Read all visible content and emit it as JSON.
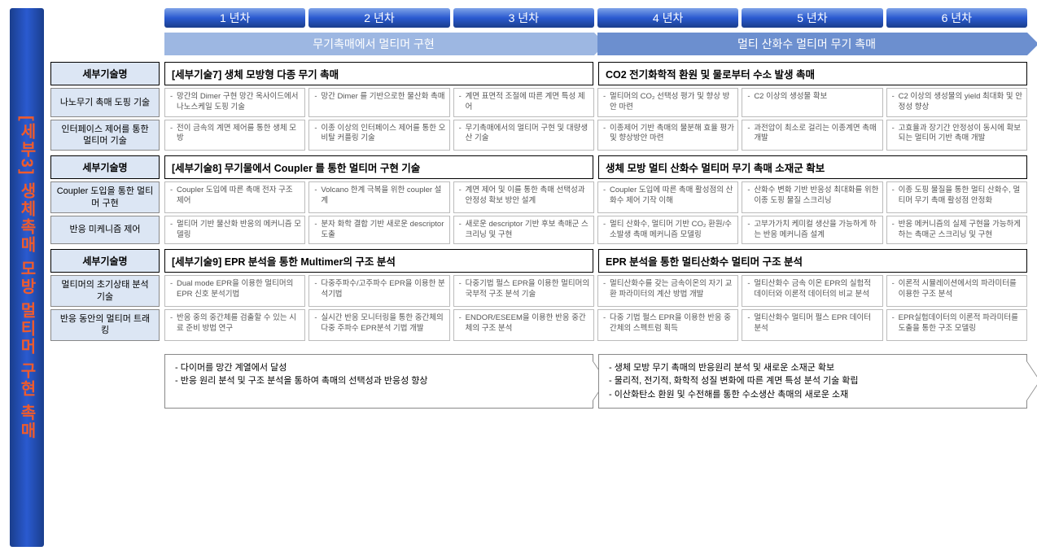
{
  "colors": {
    "banner_gradient": [
      "#1a3e8c",
      "#2a5ad0",
      "#1a3e8c"
    ],
    "banner_text": "#ef5b2c",
    "year_gradient": [
      "#7fa3e8",
      "#2a5ad0",
      "#1a3e8c"
    ],
    "phase1_bg": "#9db7e2",
    "phase2_bg": "#6c8fcf",
    "label_bg": "#dce6f4",
    "cell_border": "#bbbbbb",
    "row_border": "#888888",
    "head_border": "#000000",
    "cell_text": "#555555"
  },
  "vbanner": "[세부3] 생체촉매 모방 멀티머 구현 촉매",
  "years": [
    "1 년차",
    "2 년차",
    "3 년차",
    "4 년차",
    "5 년차",
    "6 년차"
  ],
  "phases": {
    "left": "무기촉매에서 멀티머 구현",
    "right": "멀티 산화수 멀티머 무기 촉매"
  },
  "row_head_label": "세부기술명",
  "sections": [
    {
      "title_left": "[세부기술7] 생체 모방형 다종 무기 촉매",
      "title_right": "CO2 전기화학적 환원 및 물로부터 수소 발생 촉매",
      "rows": [
        {
          "label": "나노무기 촉매 도핑 기술",
          "cells": [
            "망간의 Dimer 구현\n망간 옥사이드에서 나노스케일 도핑 기술",
            "망간 Dimer 를 기반으로한 물산화 촉매",
            "계면 표면적 조절에 따른 계면 특성 제어",
            "멀티머의 CO₂ 선택성 평가 및 향상 방안 마련",
            "C2 이상의 생성물 확보",
            "C2 이상의 생성물의 yield 최대화 및 안정성 향상"
          ]
        },
        {
          "label": "인터페이스 제어를 통한 멀티머 기술",
          "cells": [
            "전이 금속의 계면 제어를 통한 생체 모방",
            "이종 이상의 인터페이스 제어를 통한 오비탈 커플링 기술",
            "무기촉매에서의 멀티머 구현 및 대량생산 기술",
            "이종제어 기반 촉매의 물분해 효율 평가 및 향상방안 마련",
            "과전압이 최소로 걸리는 이종계면 촉매 개발",
            "고효율과 장기간 안정성이 동시에 확보되는 멀티머 기반 촉매 개발"
          ]
        }
      ]
    },
    {
      "title_left": "[세부기술8] 무기물에서 Coupler 를 통한 멀티머 구현 기술",
      "title_right": "생체 모방 멀티 산화수 멀티머 무기 촉매 소재군 확보",
      "rows": [
        {
          "label": "Coupler 도입을 통한 멀티머 구현",
          "cells": [
            "Coupler 도입에 따른 촉매 전자 구조 제어",
            "Volcano 한계 극복을 위한 coupler 설계",
            "계면 제어 및 이를 통한 촉매 선택성과 안정성 확보 방안 설계",
            "Coupler 도입에 따른 촉매 활성점의 산화수 제어 기작 이해",
            "산화수 변화 기반 반응성 최대화를 위한 이종 도핑 물질 스크리닝",
            "이종 도핑 물질을 통한 멀티 산화수, 멀티머 무기 촉매 활성점 안정화"
          ]
        },
        {
          "label": "반응 미케니즘 제어",
          "cells": [
            "멀티머 기반 물산화 반응의 메커니즘 모델링",
            "분자 화학 결합 기반 새로운 descriptor 도출",
            "새로운 descriptor 기반 후보 촉매군 스크리닝 및 구현",
            "멀티 산화수, 멀티머 기반 CO₂ 환원/수소발생 촉매 메커니즘 모델링",
            "고부가가치 케미컬 생산을 가능하게 하는 반응 메커니즘 설계",
            "반응 메커니즘의 실제 구현을 가능하게 하는 촉매군 스크리닝 및 구현"
          ]
        }
      ]
    },
    {
      "title_left": "[세부기술9] EPR 분석을 통한  Multimer의 구조 분석",
      "title_right": "EPR 분석을 통한  멀티산화수 멀티머  구조 분석",
      "rows": [
        {
          "label": "멀티머의 초기상태 분석 기술",
          "cells": [
            "Dual mode EPR을 이용한 멀티머의 EPR 신호 분석기법",
            "다중주파수/고주파수 EPR을 이용한 분석기법",
            "다중기법 펄스 EPR을 이용한 멀티머의 국부적 구조 분석 기술",
            "멀티산화수를 갖는 금속이온의 자기 교환 파라미터의 계산 방법 개발",
            "멀티산화수 금속 이온 EPR의 실험적 데이터와 이론적 데이터의 비교 분석",
            "이론적 시뮬레이션에서의 파라미터를 이용한 구조 분석"
          ]
        },
        {
          "label": "반응 동안의 멀티머 트래킹",
          "cells": [
            "반응 중의 중간체를 검출할 수 있는 시료 준비 방법 연구",
            "실시간 반응 모니터링을 통한 중간체의 다중 주파수 EPR분석 기법 개발",
            "ENDOR/ESEEM을 이용한 반응 중간체의 구조 분석",
            "다중 기법 펄스 EPR을 이용한 반응 중간체의 스펙트럼 획득",
            "멀티산화수 멀티머 펄스 EPR 데이터 분석",
            "EPR실험데이터의 이론적 파라미터를 도출을 통한 구조 모델링"
          ]
        }
      ]
    }
  ],
  "summary": {
    "left": [
      "다이머를 망간 계열에서 달성",
      "반응 원리 분석 및 구조 분석을 통하여 촉매의 선택성과 반응성 향상"
    ],
    "right": [
      "생체 모방 무기 촉매의 반응원리 분석 및 새로운 소재군 확보",
      "물리적, 전기적, 화학적 성질 변화에 따른 계면 특성 분석 기술 확립",
      "이산화탄소 환원 및 수전해를 통한 수소생산 촉매의 새로운 소재"
    ]
  }
}
